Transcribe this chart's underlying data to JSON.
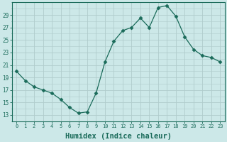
{
  "x": [
    0,
    1,
    2,
    3,
    4,
    5,
    6,
    7,
    8,
    9,
    10,
    11,
    12,
    13,
    14,
    15,
    16,
    17,
    18,
    19,
    20,
    21,
    22,
    23
  ],
  "y": [
    20,
    18.5,
    17.5,
    17,
    16.5,
    15.5,
    14.2,
    13.3,
    13.5,
    16.5,
    21.5,
    24.8,
    26.5,
    27,
    28.5,
    27,
    30.2,
    30.5,
    28.8,
    25.5,
    23.5,
    22.5,
    22.2,
    21.5
  ],
  "line_color": "#1a6b5a",
  "marker": "D",
  "marker_size": 2.5,
  "bg_color": "#cce8e8",
  "grid_color_major": "#b0cccc",
  "grid_color_minor": "#c8e0e0",
  "tick_color": "#1a6b5a",
  "xlabel": "Humidex (Indice chaleur)",
  "xlabel_fontsize": 7.5,
  "ylabel_ticks": [
    13,
    15,
    17,
    19,
    21,
    23,
    25,
    27,
    29
  ],
  "ylim": [
    12,
    31
  ],
  "xlim": [
    -0.5,
    23.5
  ],
  "xtick_labels": [
    "0",
    "1",
    "2",
    "3",
    "4",
    "5",
    "6",
    "7",
    "8",
    "9",
    "10",
    "11",
    "12",
    "13",
    "14",
    "15",
    "16",
    "17",
    "18",
    "19",
    "20",
    "21",
    "22",
    "23"
  ]
}
